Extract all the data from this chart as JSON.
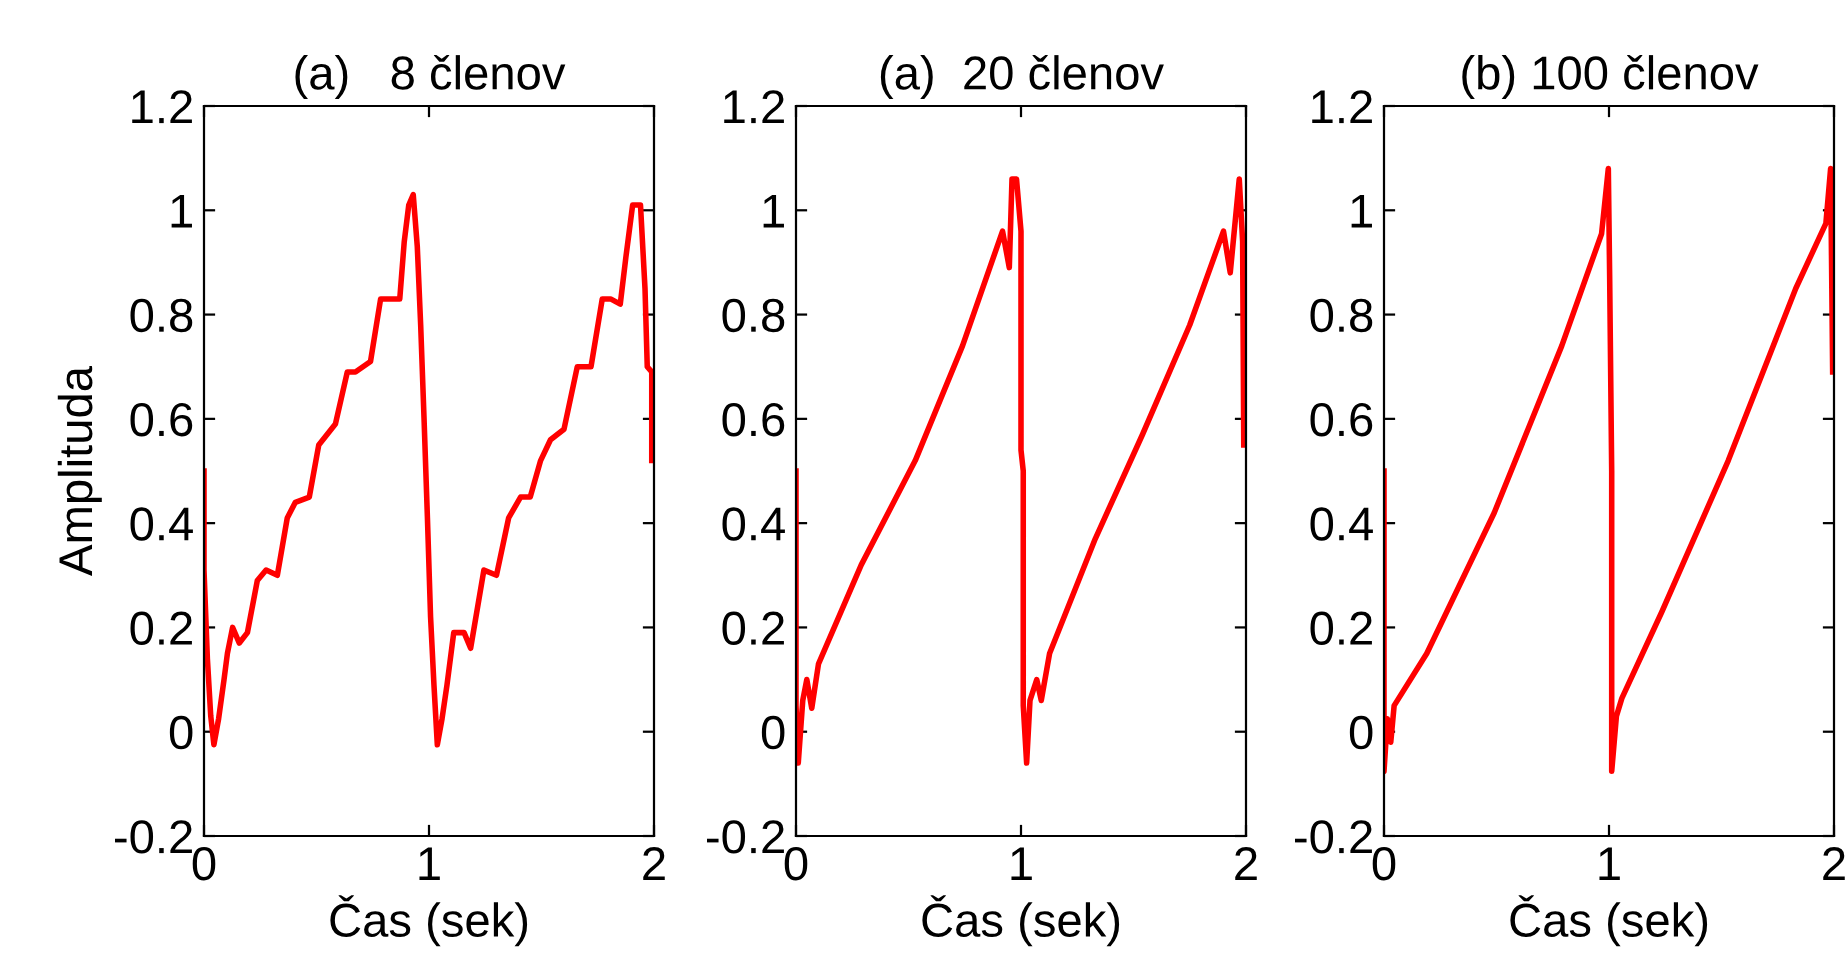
{
  "chart_data": [
    {
      "type": "line",
      "title": "(a)   8 členov",
      "xlabel": "Čas (sek)",
      "ylabel": "Amplituda",
      "xlim": [
        0,
        2
      ],
      "xticks": [
        0,
        1,
        2
      ],
      "ylim": [
        -0.2,
        1.2
      ],
      "yticks": [
        -0.2,
        0,
        0.2,
        0.4,
        0.6,
        0.8,
        1,
        1.2
      ],
      "grid": false,
      "legend": false,
      "series": [
        {
          "color": "#ff0000",
          "x": [
            0,
            0,
            0.015,
            0.03,
            0.044,
            0.065,
            0.089,
            0.104,
            0.127,
            0.157,
            0.193,
            0.237,
            0.276,
            0.326,
            0.37,
            0.406,
            0.468,
            0.51,
            0.584,
            0.637,
            0.673,
            0.74,
            0.785,
            0.815,
            0.87,
            0.89,
            0.91,
            0.93,
            0.948,
            0.963,
            0.978,
            0.993,
            1.007,
            1.022,
            1.037,
            1.058,
            1.08,
            1.11,
            1.156,
            1.185,
            1.244,
            1.3,
            1.354,
            1.407,
            1.45,
            1.496,
            1.54,
            1.6,
            1.659,
            1.72,
            1.77,
            1.807,
            1.85,
            1.875,
            1.905,
            1.94,
            1.96,
            1.97,
            1.99,
            1.99
          ],
          "values": [
            0.5,
            0.31,
            0.14,
            0.03,
            -0.025,
            0.025,
            0.1,
            0.15,
            0.2,
            0.17,
            0.19,
            0.29,
            0.31,
            0.3,
            0.41,
            0.44,
            0.45,
            0.55,
            0.59,
            0.69,
            0.69,
            0.71,
            0.83,
            0.83,
            0.83,
            0.94,
            1.01,
            1.03,
            0.93,
            0.78,
            0.6,
            0.41,
            0.22,
            0.09,
            -0.025,
            0.025,
            0.09,
            0.19,
            0.19,
            0.16,
            0.31,
            0.3,
            0.41,
            0.45,
            0.45,
            0.52,
            0.56,
            0.58,
            0.7,
            0.7,
            0.83,
            0.83,
            0.82,
            0.91,
            1.01,
            1.01,
            0.85,
            0.7,
            0.69,
            0.52
          ]
        }
      ]
    },
    {
      "type": "line",
      "title": "(a)  20 členov",
      "xlabel": "Čas (sek)",
      "xlim": [
        0,
        2
      ],
      "xticks": [
        0,
        1,
        2
      ],
      "ylim": [
        -0.2,
        1.2
      ],
      "yticks": [
        -0.2,
        0,
        0.2,
        0.4,
        0.6,
        0.8,
        1,
        1.2
      ],
      "grid": false,
      "legend": false,
      "series": [
        {
          "color": "#ff0000",
          "x": [
            0,
            0,
            0.01,
            0.03,
            0.048,
            0.07,
            0.1,
            0.29,
            0.53,
            0.74,
            0.918,
            0.948,
            0.96,
            0.98,
            1.0,
            1.0,
            1.01,
            1.01,
            1.025,
            1.04,
            1.07,
            1.09,
            1.127,
            1.33,
            1.54,
            1.75,
            1.9,
            1.93,
            1.97,
            1.985,
            1.99
          ],
          "values": [
            0.5,
            0.05,
            -0.06,
            0.06,
            0.1,
            0.045,
            0.13,
            0.32,
            0.52,
            0.74,
            0.96,
            0.89,
            1.06,
            1.06,
            0.96,
            0.54,
            0.5,
            0.05,
            -0.06,
            0.06,
            0.1,
            0.06,
            0.15,
            0.37,
            0.57,
            0.78,
            0.96,
            0.88,
            1.06,
            0.94,
            0.55
          ]
        }
      ]
    },
    {
      "type": "line",
      "title": "(b) 100 členov",
      "xlabel": "Čas (sek)",
      "xlim": [
        0,
        2
      ],
      "xticks": [
        0,
        1,
        2
      ],
      "ylim": [
        -0.2,
        1.2
      ],
      "yticks": [
        -0.2,
        0,
        0.2,
        0.4,
        0.6,
        0.8,
        1,
        1.2
      ],
      "grid": false,
      "legend": false,
      "series": [
        {
          "color": "#ff0000",
          "x": [
            0,
            0,
            0.015,
            0.03,
            0.045,
            0.19,
            0.49,
            0.79,
            0.967,
            0.997,
            1.003,
            1.012,
            1.012,
            1.033,
            1.057,
            1.235,
            1.53,
            1.83,
            1.964,
            1.985,
            1.994
          ],
          "values": [
            0.5,
            -0.076,
            0.025,
            -0.02,
            0.05,
            0.15,
            0.42,
            0.74,
            0.955,
            1.08,
            0.87,
            0.5,
            -0.076,
            0.03,
            0.064,
            0.23,
            0.52,
            0.85,
            0.975,
            1.08,
            0.69
          ]
        }
      ]
    }
  ]
}
